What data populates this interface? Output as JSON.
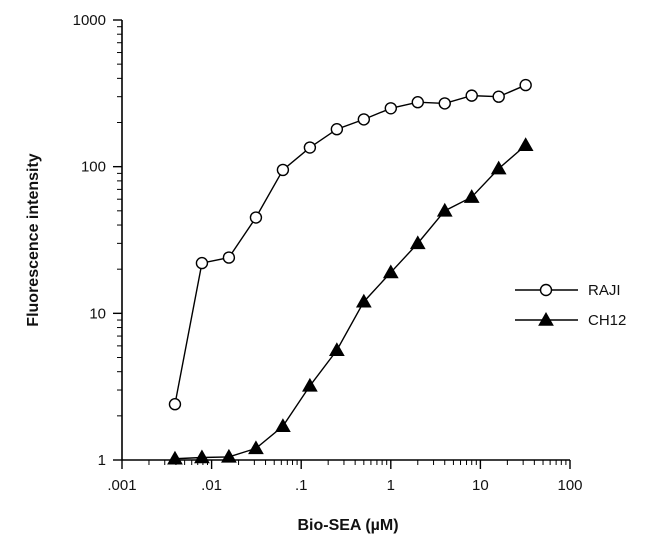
{
  "chart_data": {
    "type": "scatter",
    "title": "",
    "xlabel": "Bio-SEA  (µM)",
    "ylabel": "Fluorescence  intensity",
    "xscale": "log",
    "yscale": "log",
    "xlim": [
      0.001,
      100
    ],
    "ylim": [
      1,
      1000
    ],
    "xticks": [
      0.001,
      0.01,
      0.1,
      1,
      10,
      100
    ],
    "xtick_labels": [
      ".001",
      ".01",
      ".1",
      "1",
      "10",
      "100"
    ],
    "yticks": [
      1,
      10,
      100,
      1000
    ],
    "ytick_labels": [
      "1",
      "10",
      "100",
      "1000"
    ],
    "grid": false,
    "legend_position": "right",
    "series": [
      {
        "name": "RAJI",
        "marker": "open-circle",
        "color": "#000000",
        "x": [
          0.0039,
          0.0078,
          0.0156,
          0.03125,
          0.0625,
          0.125,
          0.25,
          0.5,
          1,
          2,
          4,
          8,
          16,
          32
        ],
        "y": [
          2.4,
          22,
          24,
          45,
          95,
          135,
          180,
          210,
          250,
          275,
          270,
          305,
          300,
          360
        ]
      },
      {
        "name": "CH12",
        "marker": "filled-triangle",
        "color": "#000000",
        "x": [
          0.0039,
          0.0078,
          0.0156,
          0.03125,
          0.0625,
          0.125,
          0.25,
          0.5,
          1,
          2,
          4,
          8,
          16,
          32
        ],
        "y": [
          1.02,
          1.04,
          1.05,
          1.2,
          1.7,
          3.2,
          5.6,
          12,
          19,
          30,
          50,
          62,
          97,
          140
        ]
      }
    ]
  }
}
